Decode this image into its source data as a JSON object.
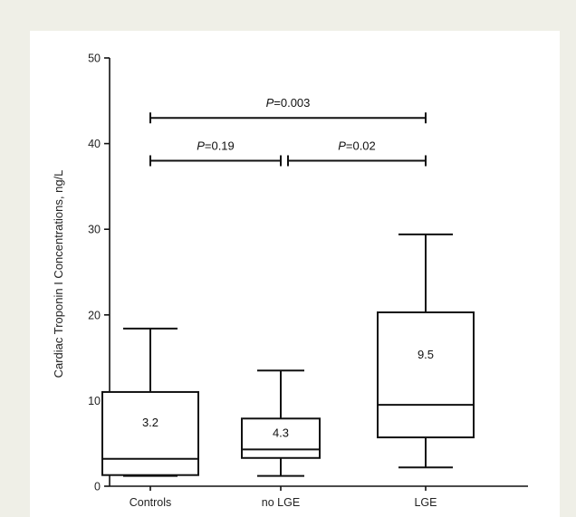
{
  "chart_data": {
    "type": "box",
    "ylabel": "Cardiac Troponin I Concentrations, ng/L",
    "ylim": [
      0,
      50
    ],
    "yticks": [
      0,
      10,
      20,
      30,
      40,
      50
    ],
    "categories": [
      "Controls",
      "no LGE",
      "LGE"
    ],
    "boxes": [
      {
        "category": "Controls",
        "whisker_low": 1.2,
        "q1": 1.3,
        "median": 3.2,
        "q3": 11.0,
        "whisker_high": 18.4,
        "median_label": "3.2"
      },
      {
        "category": "no LGE",
        "whisker_low": 1.2,
        "q1": 3.3,
        "median": 4.3,
        "q3": 7.9,
        "whisker_high": 13.5,
        "median_label": "4.3"
      },
      {
        "category": "LGE",
        "whisker_low": 2.2,
        "q1": 5.7,
        "median": 9.5,
        "q3": 20.3,
        "whisker_high": 29.4,
        "median_label": "9.5"
      }
    ],
    "comparisons": [
      {
        "from": "Controls",
        "to": "LGE",
        "y": 43,
        "prefix": "P",
        "value": "=0.003"
      },
      {
        "from": "Controls",
        "to": "no LGE",
        "y": 38,
        "prefix": "P",
        "value": "=0.19"
      },
      {
        "from": "no LGE",
        "to": "LGE",
        "y": 38,
        "prefix": "P",
        "value": "=0.02"
      }
    ]
  }
}
